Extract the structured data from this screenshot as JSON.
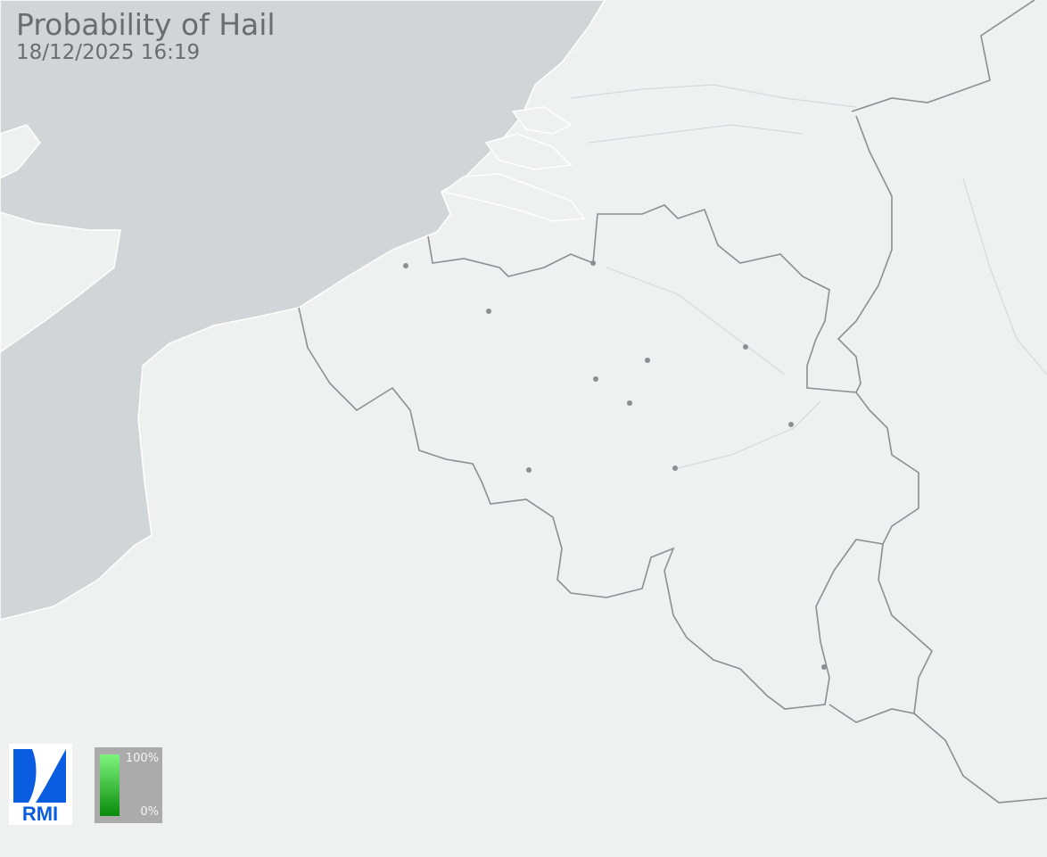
{
  "header": {
    "title": "Probability of Hail",
    "timestamp": "18/12/2025 16:19"
  },
  "logo": {
    "text": "RMI",
    "color": "#0a5ce0"
  },
  "legend": {
    "max_label": "100%",
    "min_label": "0%",
    "color_high": "#7ef57e",
    "color_low": "#0a8a0a"
  },
  "colors": {
    "land": "#eff0f0",
    "sea": "#d2d5d7",
    "border": "#8c8e90"
  }
}
